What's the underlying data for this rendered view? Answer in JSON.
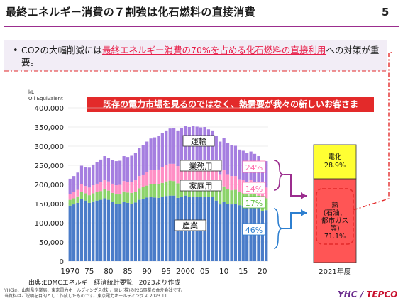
{
  "header": {
    "title": "最終エネルギー消費の７割強は化石燃料の直接消費",
    "page_number": "5"
  },
  "bullet": {
    "symbol": "•",
    "prefix": "CO2の大幅削減には",
    "highlight": "最終エネルギー消費の70%を占める化石燃料の直接利用",
    "suffix": "への対策が重要。"
  },
  "banner": "既存の電力市場を見るのではなく、熱需要が我々の新しいお客さま",
  "source": "出典:EDMCエネルギー経済統計要覧　2023より作成",
  "footer": {
    "line1": "YHCは、山梨県企業局、東京電力ホールディングス(株)、東レ(株)のP2G事業の合弁会社です。",
    "line2": "当資料はご説明を目的として作成したものです。東京電力ホールディングス 2023.11"
  },
  "logo": {
    "yhc": "YHC",
    "tepco": "TEPCO"
  },
  "chart_data": [
    {
      "type": "area",
      "ylabel": "kL\nOil Equivalent",
      "ylim": [
        0,
        400000
      ],
      "yticks": [
        0,
        50000,
        100000,
        150000,
        200000,
        250000,
        300000,
        350000,
        400000
      ],
      "ytick_labels": [
        "0",
        "50,000",
        "100,000",
        "150,000",
        "200,000",
        "250,000",
        "300,000",
        "350,000",
        "400,000"
      ],
      "x_tick_labels": [
        "1970",
        "75",
        "80",
        "85",
        "90",
        "95",
        "2000",
        "05",
        "10",
        "15",
        "20"
      ],
      "x_tick_years": [
        1970,
        1975,
        1980,
        1985,
        1990,
        1995,
        2000,
        2005,
        2010,
        2015,
        2020
      ],
      "years": [
        1970,
        1971,
        1972,
        1973,
        1974,
        1975,
        1976,
        1977,
        1978,
        1979,
        1980,
        1981,
        1982,
        1983,
        1984,
        1985,
        1986,
        1987,
        1988,
        1989,
        1990,
        1991,
        1992,
        1993,
        1994,
        1995,
        1996,
        1997,
        1998,
        1999,
        2000,
        2001,
        2002,
        2003,
        2004,
        2005,
        2006,
        2007,
        2008,
        2009,
        2010,
        2011,
        2012,
        2013,
        2014,
        2015,
        2016,
        2017,
        2018,
        2019,
        2020,
        2021
      ],
      "series": [
        {
          "name": "産業",
          "color": "#4a7cc9",
          "share_label": "46%",
          "values": [
            145000,
            148000,
            152000,
            162000,
            158000,
            152000,
            156000,
            158000,
            160000,
            164000,
            160000,
            154000,
            150000,
            149000,
            155000,
            152000,
            150000,
            153000,
            160000,
            163000,
            166000,
            167000,
            166000,
            165000,
            168000,
            170000,
            171000,
            171000,
            165000,
            168000,
            171000,
            167000,
            168000,
            167000,
            168000,
            167000,
            167000,
            167000,
            158000,
            148000,
            155000,
            150000,
            148000,
            150000,
            146000,
            145000,
            142000,
            144000,
            143000,
            140000,
            130000,
            133000
          ]
        },
        {
          "name": "家庭用",
          "color": "#8cd36a",
          "share_label": "17%",
          "values": [
            15000,
            16000,
            17000,
            19000,
            19000,
            20000,
            21000,
            22000,
            23000,
            24000,
            24000,
            24000,
            24000,
            25000,
            27000,
            27000,
            28000,
            28000,
            30000,
            30000,
            31000,
            33000,
            34000,
            35000,
            36000,
            38000,
            39000,
            38000,
            38000,
            39000,
            40000,
            40000,
            41000,
            41000,
            40000,
            42000,
            40000,
            40000,
            39000,
            38000,
            40000,
            38000,
            37000,
            36000,
            34000,
            33000,
            33000,
            35000,
            32000,
            31000,
            32000,
            31000
          ]
        },
        {
          "name": "業務用",
          "color": "#ff8fc5",
          "share_label": "14%",
          "values": [
            15000,
            16000,
            17000,
            19000,
            19000,
            20000,
            21000,
            22000,
            23000,
            24000,
            24000,
            24000,
            24000,
            25000,
            27000,
            27000,
            28000,
            30000,
            32000,
            33000,
            35000,
            37000,
            38000,
            39000,
            41000,
            43000,
            44000,
            45000,
            45000,
            46000,
            47000,
            47000,
            48000,
            48000,
            47000,
            48000,
            46000,
            45000,
            43000,
            41000,
            42000,
            39000,
            37000,
            36000,
            34000,
            33000,
            32000,
            32000,
            31000,
            30000,
            28000,
            28000
          ]
        },
        {
          "name": "運輸",
          "color": "#a57ee0",
          "share_label": "24%",
          "values": [
            40000,
            42000,
            45000,
            49000,
            50000,
            52000,
            54000,
            57000,
            59000,
            62000,
            62000,
            62000,
            63000,
            63000,
            65000,
            66000,
            69000,
            71000,
            74000,
            77000,
            80000,
            83000,
            85000,
            87000,
            89000,
            90000,
            92000,
            93000,
            93000,
            94000,
            95000,
            96000,
            96000,
            95000,
            94000,
            93000,
            91000,
            89000,
            86000,
            85000,
            84000,
            82000,
            80000,
            79000,
            77000,
            77000,
            76000,
            75000,
            74000,
            73000,
            67000,
            69000
          ]
        }
      ]
    },
    {
      "type": "bar",
      "categories": [
        "2021年度"
      ],
      "series": [
        {
          "name": "熱\n(石油、\n都市ガス\n等)",
          "value_label": "71.1%",
          "values": [
            71.1
          ],
          "color": "#ff5555"
        },
        {
          "name": "電化",
          "value_label": "28.9%",
          "values": [
            28.9
          ],
          "color": "#ffff33"
        }
      ],
      "ylim": [
        0,
        100
      ]
    }
  ]
}
